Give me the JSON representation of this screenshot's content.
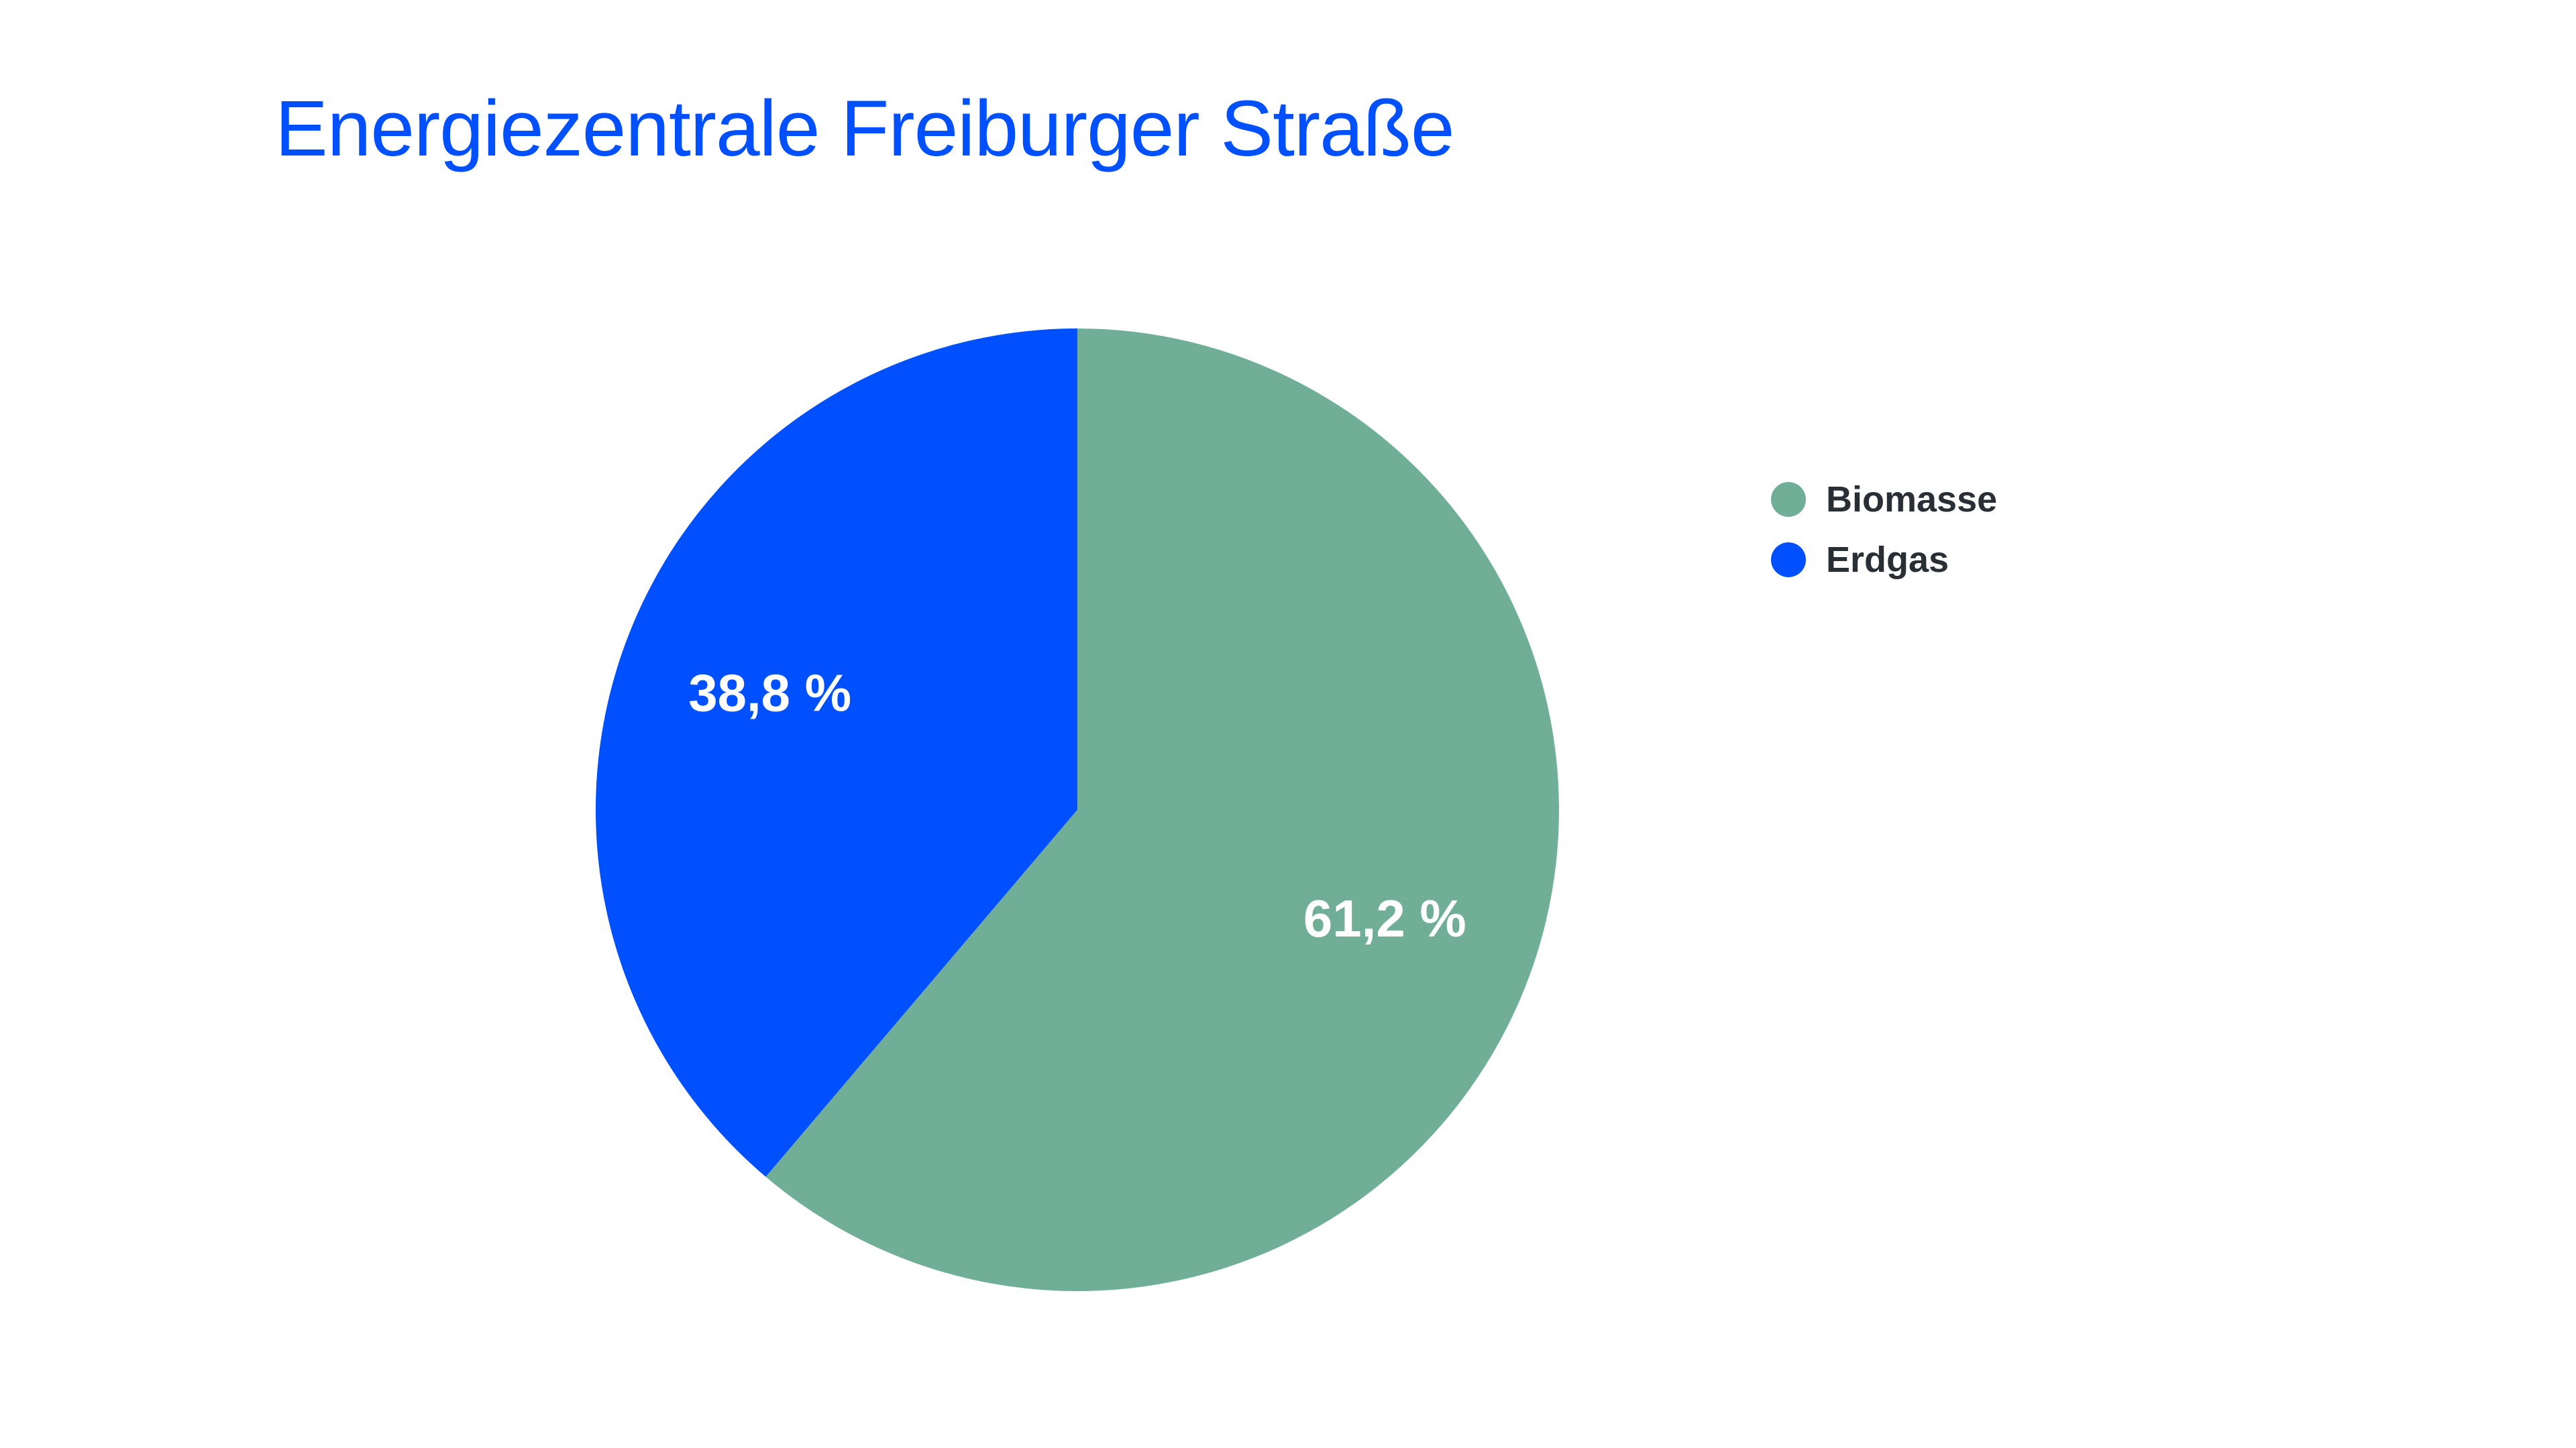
{
  "chart_data": {
    "type": "pie",
    "title": "Energiezentrale Freiburger Straße",
    "categories": [
      "Biomasse",
      "Erdgas"
    ],
    "values": [
      61.2,
      38.8
    ],
    "value_labels": [
      "61,2 %",
      "38,8 %"
    ],
    "colors": [
      "#70ae98",
      "#0050ff"
    ],
    "start_angle": "12 o'clock, clockwise",
    "legend": {
      "placement": "right",
      "entries": [
        "Biomasse",
        "Erdgas"
      ]
    }
  }
}
